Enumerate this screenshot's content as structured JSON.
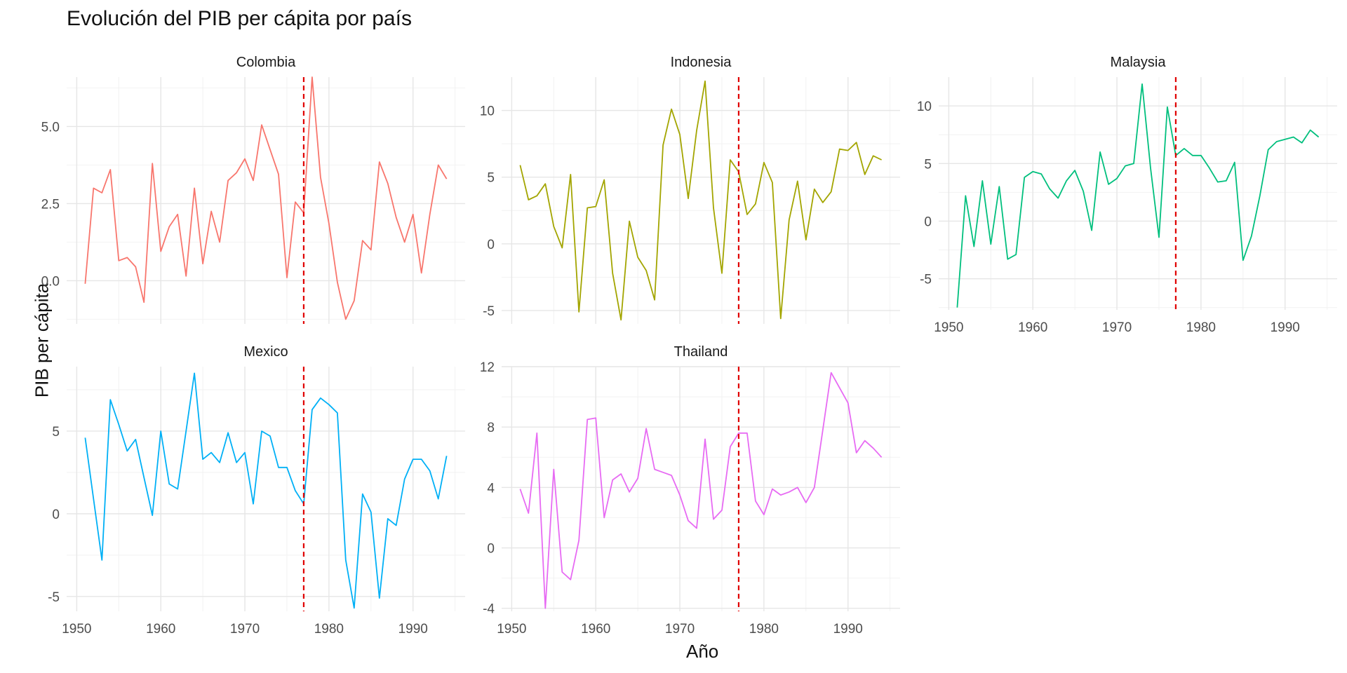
{
  "chart_data": {
    "type": "line",
    "title": "Evolución del PIB per cápita por país",
    "xlabel": "Año",
    "ylabel": "PIB per cápita",
    "grid": true,
    "legend": "none",
    "reference_line": {
      "x": 1977,
      "color": "#e00000",
      "style": "dashed"
    },
    "facets": [
      {
        "name": "Colombia",
        "color": "#f8766d",
        "ylim": [
          -1.4,
          6.6
        ],
        "yticks": [
          0,
          2.5,
          5
        ],
        "ytick_labels": [
          "0.0",
          "2.5",
          "5.0"
        ],
        "xticks": [
          1950,
          1960,
          1970,
          1980,
          1990
        ],
        "show_xticks": false,
        "x": [
          1951,
          1952,
          1953,
          1954,
          1955,
          1956,
          1957,
          1958,
          1959,
          1960,
          1961,
          1962,
          1963,
          1964,
          1965,
          1966,
          1967,
          1968,
          1969,
          1970,
          1971,
          1972,
          1973,
          1974,
          1975,
          1976,
          1977,
          1978,
          1979,
          1980,
          1981,
          1982,
          1983,
          1984,
          1985,
          1986,
          1987,
          1988,
          1989,
          1990,
          1991,
          1992,
          1993,
          1994
        ],
        "y": [
          -0.1,
          3.0,
          2.85,
          3.6,
          0.65,
          0.75,
          0.45,
          -0.7,
          3.8,
          0.95,
          1.75,
          2.15,
          0.15,
          3.0,
          0.55,
          2.25,
          1.25,
          3.25,
          3.5,
          3.95,
          3.25,
          5.05,
          4.25,
          3.45,
          0.1,
          2.55,
          2.2,
          6.6,
          3.35,
          1.85,
          -0.05,
          -1.25,
          -0.65,
          1.3,
          1.0,
          3.85,
          3.15,
          2.05,
          1.25,
          2.15,
          0.25,
          2.15,
          3.75,
          3.3
        ]
      },
      {
        "name": "Indonesia",
        "color": "#a3a500",
        "ylim": [
          -6.0,
          12.5
        ],
        "yticks": [
          -5,
          0,
          5,
          10
        ],
        "ytick_labels": [
          "-5",
          "0",
          "5",
          "10"
        ],
        "xticks": [
          1950,
          1960,
          1970,
          1980,
          1990
        ],
        "show_xticks": false,
        "x": [
          1951,
          1952,
          1953,
          1954,
          1955,
          1956,
          1957,
          1958,
          1959,
          1960,
          1961,
          1962,
          1963,
          1964,
          1965,
          1966,
          1967,
          1968,
          1969,
          1970,
          1971,
          1972,
          1973,
          1974,
          1975,
          1976,
          1977,
          1978,
          1979,
          1980,
          1981,
          1982,
          1983,
          1984,
          1985,
          1986,
          1987,
          1988,
          1989,
          1990,
          1991,
          1992,
          1993,
          1994
        ],
        "y": [
          5.9,
          3.3,
          3.6,
          4.5,
          1.3,
          -0.3,
          5.2,
          -5.1,
          2.7,
          2.8,
          4.8,
          -2.2,
          -5.7,
          1.7,
          -1.0,
          -2.0,
          -4.2,
          7.4,
          10.1,
          8.2,
          3.4,
          8.5,
          12.2,
          2.7,
          -2.2,
          6.3,
          5.4,
          2.2,
          3.0,
          6.1,
          4.6,
          -5.6,
          1.8,
          4.7,
          0.3,
          4.1,
          3.1,
          3.9,
          7.1,
          7.0,
          7.6,
          5.2,
          6.6,
          6.3
        ]
      },
      {
        "name": "Malaysia",
        "color": "#00bf7d",
        "ylim": [
          -7.7,
          12.5
        ],
        "yticks": [
          -5,
          0,
          5,
          10
        ],
        "ytick_labels": [
          "-5",
          "0",
          "5",
          "10"
        ],
        "xticks": [
          1950,
          1960,
          1970,
          1980,
          1990
        ],
        "show_xticks": true,
        "x": [
          1951,
          1952,
          1953,
          1954,
          1955,
          1956,
          1957,
          1958,
          1959,
          1960,
          1961,
          1962,
          1963,
          1964,
          1965,
          1966,
          1967,
          1968,
          1969,
          1970,
          1971,
          1972,
          1973,
          1974,
          1975,
          1976,
          1977,
          1978,
          1979,
          1980,
          1981,
          1982,
          1983,
          1984,
          1985,
          1986,
          1987,
          1988,
          1989,
          1990,
          1991,
          1992,
          1993,
          1994
        ],
        "y": [
          -7.5,
          2.2,
          -2.2,
          3.5,
          -2.0,
          3.0,
          -3.3,
          -2.9,
          3.8,
          4.3,
          4.1,
          2.8,
          2.0,
          3.5,
          4.4,
          2.6,
          -0.8,
          6.0,
          3.2,
          3.7,
          4.8,
          5.0,
          11.9,
          4.6,
          -1.4,
          9.9,
          5.7,
          6.3,
          5.7,
          5.7,
          4.6,
          3.4,
          3.5,
          5.1,
          -3.4,
          -1.3,
          2.2,
          6.2,
          6.9,
          7.1,
          7.3,
          6.8,
          7.9,
          7.3
        ]
      },
      {
        "name": "Mexico",
        "color": "#00b0f6",
        "ylim": [
          -5.9,
          8.9
        ],
        "yticks": [
          -5,
          0,
          5
        ],
        "ytick_labels": [
          "-5",
          "0",
          "5"
        ],
        "xticks": [
          1950,
          1960,
          1970,
          1980,
          1990
        ],
        "show_xticks": true,
        "x": [
          1951,
          1952,
          1953,
          1954,
          1955,
          1956,
          1957,
          1958,
          1959,
          1960,
          1961,
          1962,
          1963,
          1964,
          1965,
          1966,
          1967,
          1968,
          1969,
          1970,
          1971,
          1972,
          1973,
          1974,
          1975,
          1976,
          1977,
          1978,
          1979,
          1980,
          1981,
          1982,
          1983,
          1984,
          1985,
          1986,
          1987,
          1988,
          1989,
          1990,
          1991,
          1992,
          1993,
          1994
        ],
        "y": [
          4.6,
          0.9,
          -2.8,
          6.9,
          5.4,
          3.8,
          4.5,
          2.2,
          -0.1,
          5.0,
          1.8,
          1.5,
          5.0,
          8.5,
          3.3,
          3.7,
          3.1,
          4.9,
          3.1,
          3.7,
          0.6,
          5.0,
          4.7,
          2.8,
          2.8,
          1.4,
          0.6,
          6.3,
          7.0,
          6.6,
          6.1,
          -2.8,
          -5.7,
          1.2,
          0.1,
          -5.1,
          -0.3,
          -0.7,
          2.1,
          3.3,
          3.3,
          2.6,
          0.9,
          3.5
        ]
      },
      {
        "name": "Thailand",
        "color": "#e76bf3",
        "ylim": [
          -4.2,
          12.0
        ],
        "yticks": [
          -4,
          0,
          4,
          8,
          12
        ],
        "ytick_labels": [
          "-4",
          "0",
          "4",
          "8",
          "12"
        ],
        "xticks": [
          1950,
          1960,
          1970,
          1980,
          1990
        ],
        "show_xticks": true,
        "x": [
          1951,
          1952,
          1953,
          1954,
          1955,
          1956,
          1957,
          1958,
          1959,
          1960,
          1961,
          1962,
          1963,
          1964,
          1965,
          1966,
          1967,
          1968,
          1969,
          1970,
          1971,
          1972,
          1973,
          1974,
          1975,
          1976,
          1977,
          1978,
          1979,
          1980,
          1981,
          1982,
          1983,
          1984,
          1985,
          1986,
          1987,
          1988,
          1989,
          1990,
          1991,
          1992,
          1993,
          1994
        ],
        "y": [
          3.9,
          2.3,
          7.6,
          -4.0,
          5.2,
          -1.6,
          -2.1,
          0.5,
          8.5,
          8.6,
          2.0,
          4.5,
          4.9,
          3.7,
          4.6,
          7.9,
          5.2,
          5.0,
          4.8,
          3.5,
          1.8,
          1.3,
          7.2,
          1.9,
          2.5,
          6.7,
          7.6,
          7.6,
          3.1,
          2.2,
          3.9,
          3.5,
          3.7,
          4.0,
          3.0,
          4.0,
          7.8,
          11.6,
          10.6,
          9.6,
          6.3,
          7.1,
          6.6,
          6.0
        ]
      }
    ]
  }
}
